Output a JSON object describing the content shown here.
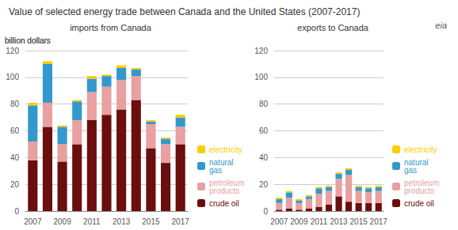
{
  "chart_data": [
    {
      "type": "bar",
      "title": "Value of selected energy trade between Canada and the United States (2007-2017)",
      "subtitle": "imports from Canada",
      "ylabel": "billion dollars",
      "annotations": [
        "eia"
      ],
      "categories": [
        "2007",
        null,
        "2009",
        null,
        "2011",
        null,
        "2013",
        null,
        "2015",
        null,
        "2017"
      ],
      "series": [
        {
          "name": "crude oil",
          "color": "#6b0e0e",
          "values": [
            38,
            63,
            37,
            50,
            68,
            72,
            76,
            83,
            47,
            36,
            50
          ]
        },
        {
          "name": "petroleum\nproducts",
          "color": "#e8a0a0",
          "values": [
            14,
            18,
            13,
            18,
            21,
            21,
            22,
            18,
            18,
            14,
            13
          ]
        },
        {
          "name": "natural\ngas",
          "color": "#3399cc",
          "values": [
            27,
            29,
            13,
            14,
            10,
            8,
            9,
            5,
            2,
            4,
            7
          ]
        },
        {
          "name": "electricity",
          "color": "#ffcc00",
          "values": [
            2,
            2,
            1,
            1,
            2,
            1,
            2,
            1,
            1,
            1,
            2
          ]
        }
      ],
      "stacked": true,
      "ylim": [
        0,
        120
      ],
      "yticks": [
        0,
        20,
        40,
        60,
        80,
        100,
        120
      ],
      "grid": true,
      "legend": "lower right"
    },
    {
      "type": "bar",
      "subtitle": "exports to Canada",
      "ylabel": "billion dollars",
      "categories": [
        "2007",
        null,
        "2009",
        null,
        "2011",
        null,
        "2013",
        null,
        "2015",
        null,
        "2017"
      ],
      "series": [
        {
          "name": "crude oil",
          "color": "#6b0e0e",
          "values": [
            1,
            2,
            1,
            2,
            3,
            5,
            11,
            7,
            6,
            6,
            6
          ]
        },
        {
          "name": "petroleum\nproducts",
          "color": "#e8a0a0",
          "values": [
            5,
            8,
            5,
            7,
            10,
            10,
            13,
            20,
            9,
            8,
            9
          ]
        },
        {
          "name": "natural\ngas",
          "color": "#3399cc",
          "values": [
            3,
            4,
            2,
            2,
            4,
            3,
            4,
            4,
            3,
            3,
            3
          ]
        },
        {
          "name": "electricity",
          "color": "#ffcc00",
          "values": [
            1,
            1,
            1,
            1,
            1,
            1,
            1,
            1,
            1,
            1,
            1
          ]
        }
      ],
      "stacked": true,
      "ylim": [
        0,
        120
      ],
      "yticks": [
        0,
        20,
        40,
        60,
        80,
        100,
        120
      ],
      "grid": true,
      "legend": "lower right"
    }
  ]
}
